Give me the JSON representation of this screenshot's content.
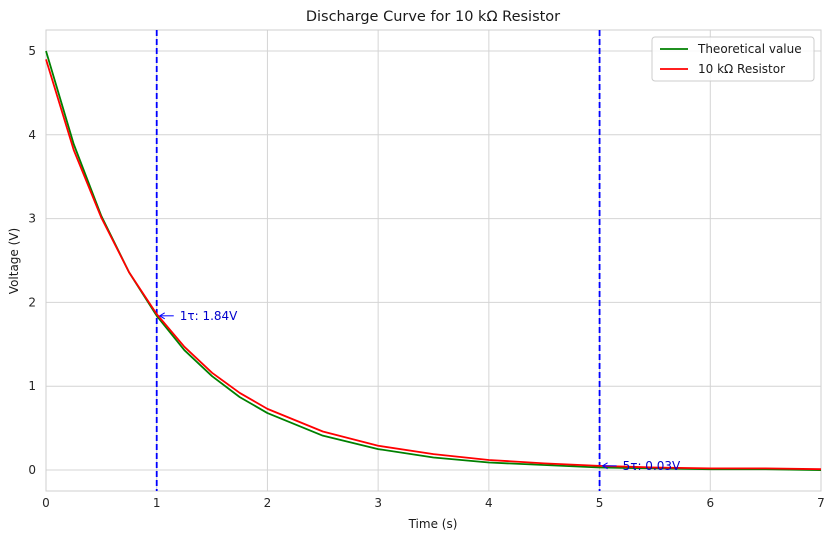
{
  "chart_data": {
    "type": "line",
    "title": "Discharge Curve for 10 kΩ Resistor",
    "xlabel": "Time (s)",
    "ylabel": "Voltage (V)",
    "xlim": [
      0,
      7
    ],
    "ylim": [
      -0.25,
      5.25
    ],
    "grid": true,
    "legend_position": "top-right",
    "x_ticks": [
      0,
      1,
      2,
      3,
      4,
      5,
      6,
      7
    ],
    "x_tick_labels": [
      "0",
      "1",
      "2",
      "3",
      "4",
      "5",
      "6",
      "7"
    ],
    "y_ticks": [
      0,
      1,
      2,
      3,
      4,
      5
    ],
    "y_tick_labels": [
      "0",
      "1",
      "2",
      "3",
      "4",
      "5"
    ],
    "series": [
      {
        "name": "Theoretical value",
        "color": "#008000",
        "x": [
          0,
          0.25,
          0.5,
          0.75,
          1,
          1.25,
          1.5,
          1.75,
          2,
          2.5,
          3,
          3.5,
          4,
          4.5,
          5,
          5.5,
          6,
          6.5,
          7
        ],
        "values": [
          5.0,
          3.89,
          3.03,
          2.36,
          1.84,
          1.43,
          1.12,
          0.87,
          0.68,
          0.41,
          0.25,
          0.15,
          0.09,
          0.06,
          0.03,
          0.02,
          0.01,
          0.01,
          0.0
        ]
      },
      {
        "name": "10 kΩ Resistor",
        "color": "#ff0000",
        "x": [
          0,
          0.25,
          0.5,
          0.75,
          1,
          1.25,
          1.5,
          1.75,
          2,
          2.5,
          3,
          3.5,
          4,
          4.5,
          5,
          5.5,
          6,
          6.5,
          7
        ],
        "values": [
          4.9,
          3.82,
          3.01,
          2.36,
          1.86,
          1.47,
          1.16,
          0.92,
          0.73,
          0.46,
          0.29,
          0.19,
          0.12,
          0.08,
          0.05,
          0.03,
          0.02,
          0.02,
          0.01
        ]
      }
    ],
    "vlines": [
      {
        "x": 1,
        "color": "#0000ff",
        "style": "dashed"
      },
      {
        "x": 5,
        "color": "#0000ff",
        "style": "dashed"
      }
    ],
    "annotations": [
      {
        "text": "1τ: 1.84V",
        "x": 1,
        "y": 1.84,
        "text_x": 1.19,
        "text_y": 1.84
      },
      {
        "text": "5τ: 0.03V",
        "x": 5,
        "y": 0.05,
        "text_x": 5.19,
        "text_y": 0.05
      }
    ]
  }
}
